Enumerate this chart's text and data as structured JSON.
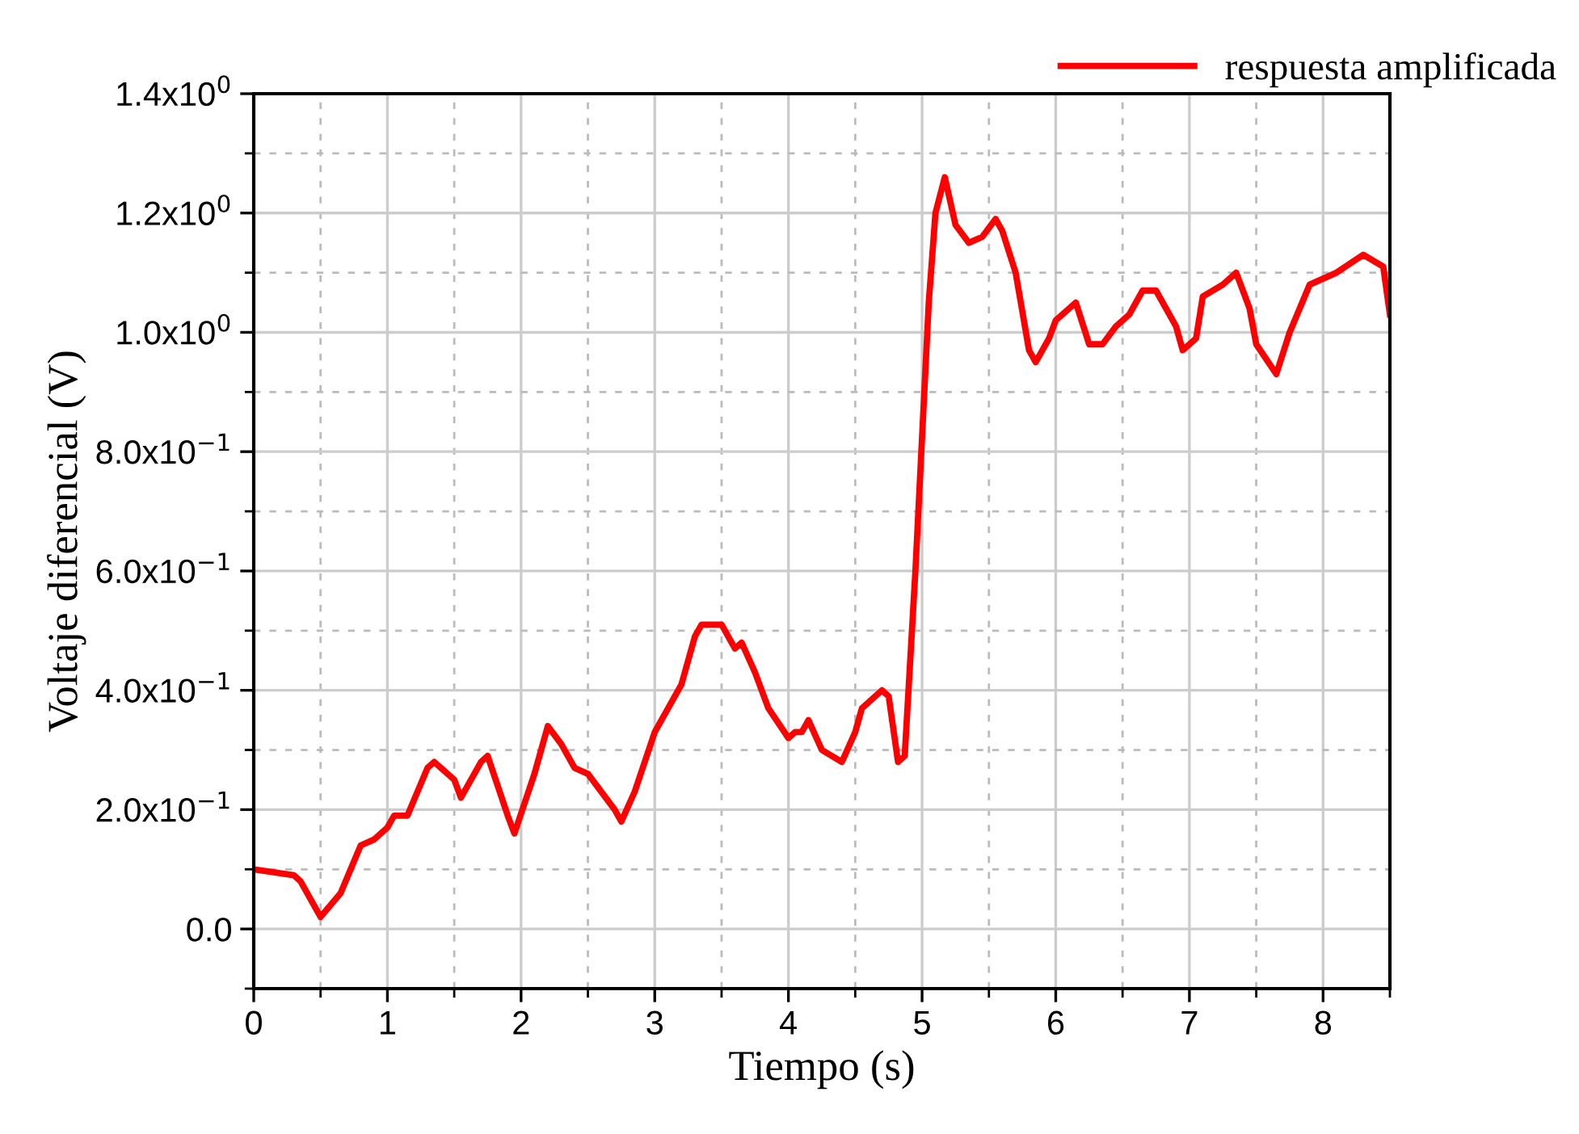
{
  "chart_data": {
    "type": "line",
    "xlabel": "Tiempo (s)",
    "ylabel": "Voltaje diferencial (V)",
    "xlim": [
      0,
      8.5
    ],
    "xticks": [
      0,
      1,
      2,
      3,
      4,
      5,
      6,
      7,
      8
    ],
    "ylim": [
      -0.1,
      1.4
    ],
    "yticks": [
      {
        "value": 0,
        "label": "0.0"
      },
      {
        "value": 0.2,
        "label": "2.0x10$^{−1}$"
      },
      {
        "value": 0.4,
        "label": "4.0x10$^{−1}$"
      },
      {
        "value": 0.6,
        "label": "6.0x10$^{−1}$"
      },
      {
        "value": 0.8,
        "label": "8.0x10$^{−1}$"
      },
      {
        "value": 1.0,
        "label": "1.0x10$^{0}$"
      },
      {
        "value": 1.2,
        "label": "1.2x10$^{0}$"
      },
      {
        "value": 1.4,
        "label": "1.4x10$^{0}$"
      }
    ],
    "grid": true,
    "legend": "top right",
    "line_style": "solid",
    "series": [
      {
        "name": "respuesta amplificada",
        "color": "#ff0000",
        "x": [
          0,
          0.3,
          0.35,
          0.5,
          0.65,
          0.8,
          0.9,
          1.0,
          1.05,
          1.15,
          1.3,
          1.35,
          1.5,
          1.55,
          1.7,
          1.75,
          1.9,
          1.95,
          2.1,
          2.2,
          2.3,
          2.4,
          2.5,
          2.7,
          2.75,
          2.85,
          3.0,
          3.2,
          3.3,
          3.35,
          3.5,
          3.6,
          3.65,
          3.75,
          3.85,
          4.0,
          4.05,
          4.1,
          4.15,
          4.25,
          4.4,
          4.5,
          4.55,
          4.7,
          4.75,
          4.82,
          4.87,
          4.95,
          5.05,
          5.1,
          5.17,
          5.25,
          5.35,
          5.45,
          5.55,
          5.6,
          5.7,
          5.8,
          5.85,
          5.95,
          6.0,
          6.15,
          6.25,
          6.35,
          6.45,
          6.55,
          6.65,
          6.75,
          6.9,
          6.95,
          7.05,
          7.1,
          7.25,
          7.35,
          7.45,
          7.5,
          7.65,
          7.75,
          7.9,
          8.1,
          8.3,
          8.45,
          8.5
        ],
        "values": [
          0.1,
          0.09,
          0.08,
          0.02,
          0.06,
          0.14,
          0.15,
          0.17,
          0.19,
          0.19,
          0.27,
          0.28,
          0.25,
          0.22,
          0.28,
          0.29,
          0.19,
          0.16,
          0.26,
          0.34,
          0.31,
          0.27,
          0.26,
          0.2,
          0.18,
          0.23,
          0.33,
          0.41,
          0.49,
          0.51,
          0.51,
          0.47,
          0.48,
          0.43,
          0.37,
          0.32,
          0.33,
          0.33,
          0.35,
          0.3,
          0.28,
          0.33,
          0.37,
          0.4,
          0.39,
          0.28,
          0.29,
          0.6,
          1.05,
          1.2,
          1.26,
          1.18,
          1.15,
          1.16,
          1.19,
          1.17,
          1.1,
          0.97,
          0.95,
          0.99,
          1.02,
          1.05,
          0.98,
          0.98,
          1.01,
          1.03,
          1.07,
          1.07,
          1.01,
          0.97,
          0.99,
          1.06,
          1.08,
          1.1,
          1.04,
          0.98,
          0.93,
          1.0,
          1.08,
          1.1,
          1.13,
          1.11,
          1.03
        ]
      }
    ]
  }
}
